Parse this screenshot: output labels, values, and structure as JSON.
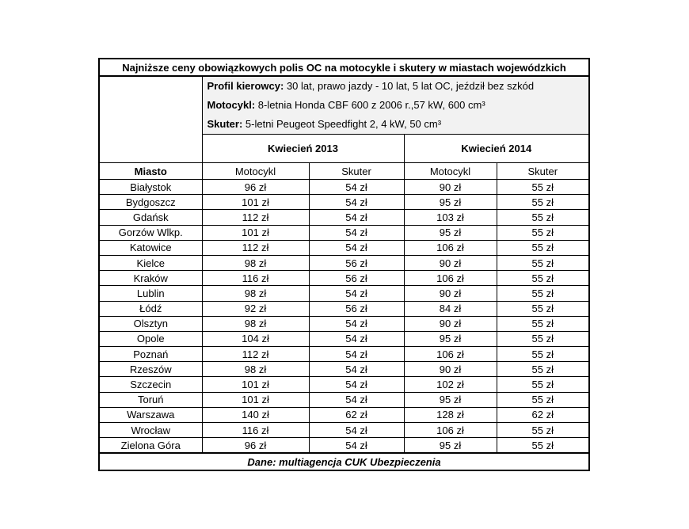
{
  "title": "Najniższe ceny obowiązkowych polis OC na motocykle i skutery w miastach wojewódzkich",
  "info": [
    {
      "label": "Profil kierowcy:",
      "text": "30 lat, prawo jazdy - 10 lat, 5 lat OC, jeździł bez szkód"
    },
    {
      "label": "Motocykl:",
      "text": "8-letnia Honda CBF 600 z 2006 r.,57 kW, 600 cm³"
    },
    {
      "label": "Skuter:",
      "text": "5-letni Peugeot Speedfight 2, 4 kW, 50 cm³"
    }
  ],
  "periods": [
    "Kwiecień 2013",
    "Kwiecień 2014"
  ],
  "columns": [
    "Miasto",
    "Motocykl",
    "Skuter",
    "Motocykl",
    "Skuter"
  ],
  "rows": [
    [
      "Białystok",
      "96 zł",
      "54 zł",
      "90 zł",
      "55 zł"
    ],
    [
      "Bydgoszcz",
      "101 zł",
      "54 zł",
      "95 zł",
      "55 zł"
    ],
    [
      "Gdańsk",
      "112 zł",
      "54 zł",
      "103 zł",
      "55 zł"
    ],
    [
      "Gorzów Wlkp.",
      "101 zł",
      "54 zł",
      "95 zł",
      "55 zł"
    ],
    [
      "Katowice",
      "112 zł",
      "54 zł",
      "106 zł",
      "55 zł"
    ],
    [
      "Kielce",
      "98 zł",
      "56 zł",
      "90 zł",
      "55 zł"
    ],
    [
      "Kraków",
      "116 zł",
      "56 zł",
      "106 zł",
      "55 zł"
    ],
    [
      "Lublin",
      "98 zł",
      "54 zł",
      "90 zł",
      "55 zł"
    ],
    [
      "Łódź",
      "92 zł",
      "56 zł",
      "84 zł",
      "55 zł"
    ],
    [
      "Olsztyn",
      "98 zł",
      "54 zł",
      "90 zł",
      "55 zł"
    ],
    [
      "Opole",
      "104 zł",
      "54 zł",
      "95 zł",
      "55 zł"
    ],
    [
      "Poznań",
      "112 zł",
      "54 zł",
      "106 zł",
      "55 zł"
    ],
    [
      "Rzeszów",
      "98 zł",
      "54 zł",
      "90 zł",
      "55 zł"
    ],
    [
      "Szczecin",
      "101 zł",
      "54 zł",
      "102 zł",
      "55 zł"
    ],
    [
      "Toruń",
      "101 zł",
      "54 zł",
      "95 zł",
      "55 zł"
    ],
    [
      "Warszawa",
      "140 zł",
      "62 zł",
      "128 zł",
      "62 zł"
    ],
    [
      "Wrocław",
      "116 zł",
      "54 zł",
      "106 zł",
      "55 zł"
    ],
    [
      "Zielona Góra",
      "96 zł",
      "54 zł",
      "95 zł",
      "55 zł"
    ]
  ],
  "source": "Dane: multiagencja CUK Ubezpieczenia"
}
